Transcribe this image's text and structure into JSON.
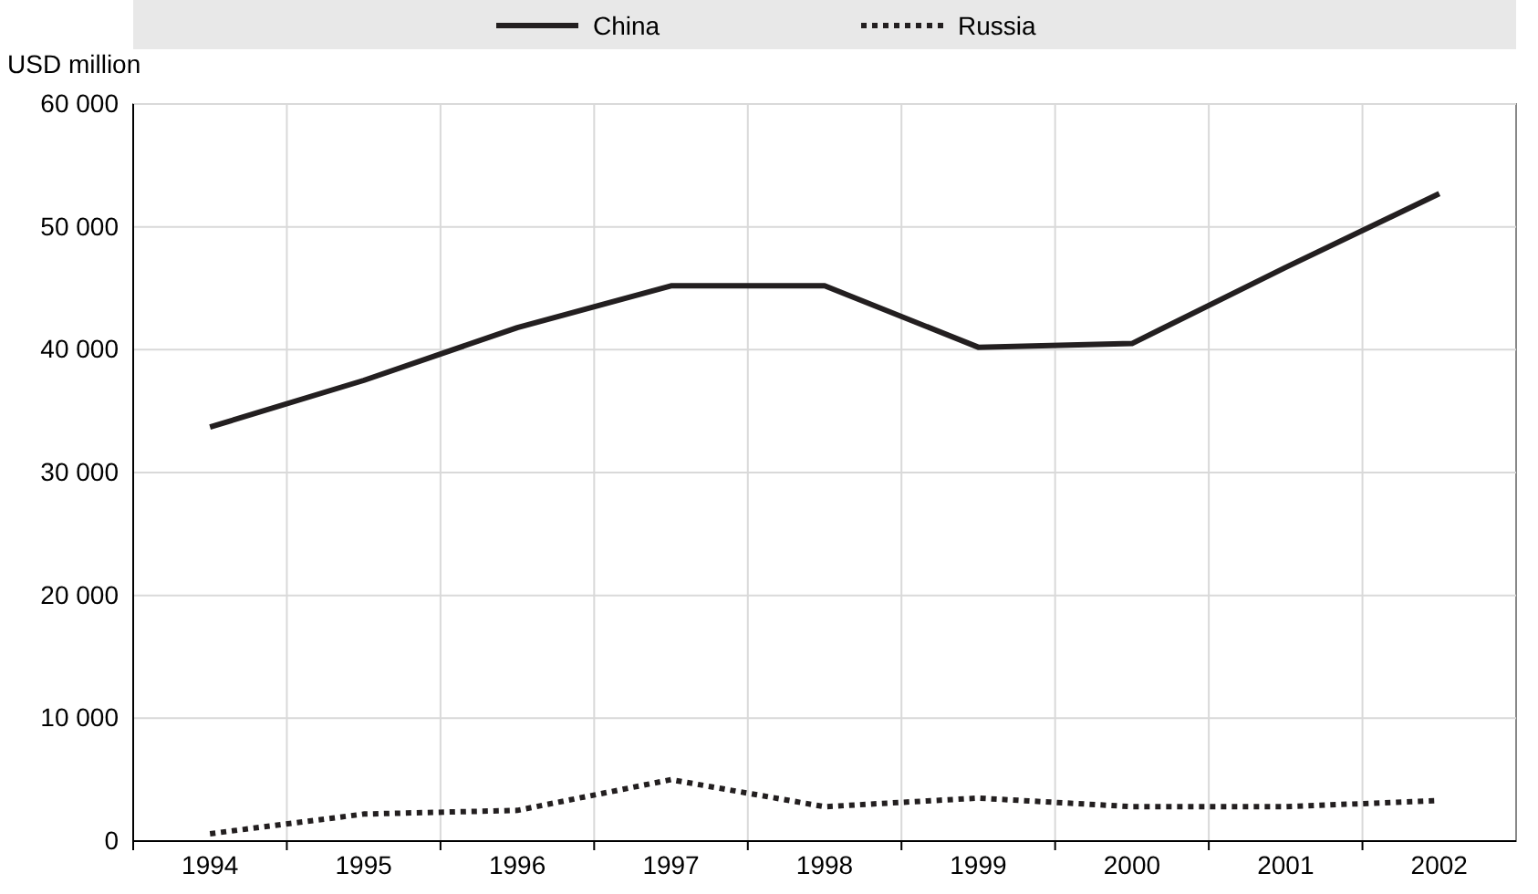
{
  "chart_data": {
    "type": "line",
    "ylabel": "USD million",
    "categories": [
      "1994",
      "1995",
      "1996",
      "1997",
      "1998",
      "1999",
      "2000",
      "2001",
      "2002"
    ],
    "series": [
      {
        "name": "China",
        "color": "#231f20",
        "line_style": "solid",
        "values": [
          33700,
          37500,
          41800,
          45200,
          45200,
          40200,
          40500,
          46700,
          52700
        ]
      },
      {
        "name": "Russia",
        "color": "#231f20",
        "line_style": "dotted",
        "values": [
          600,
          2200,
          2500,
          5000,
          2800,
          3500,
          2800,
          2800,
          3300
        ]
      }
    ],
    "ylim": [
      0,
      60000
    ],
    "yticks": [
      {
        "value": 0,
        "label": "0"
      },
      {
        "value": 10000,
        "label": "10 000"
      },
      {
        "value": 20000,
        "label": "20 000"
      },
      {
        "value": 30000,
        "label": "30 000"
      },
      {
        "value": 40000,
        "label": "40 000"
      },
      {
        "value": 50000,
        "label": "50 000"
      },
      {
        "value": 60000,
        "label": "60 000"
      }
    ],
    "grid": true,
    "legend": "top",
    "marker": "none"
  }
}
